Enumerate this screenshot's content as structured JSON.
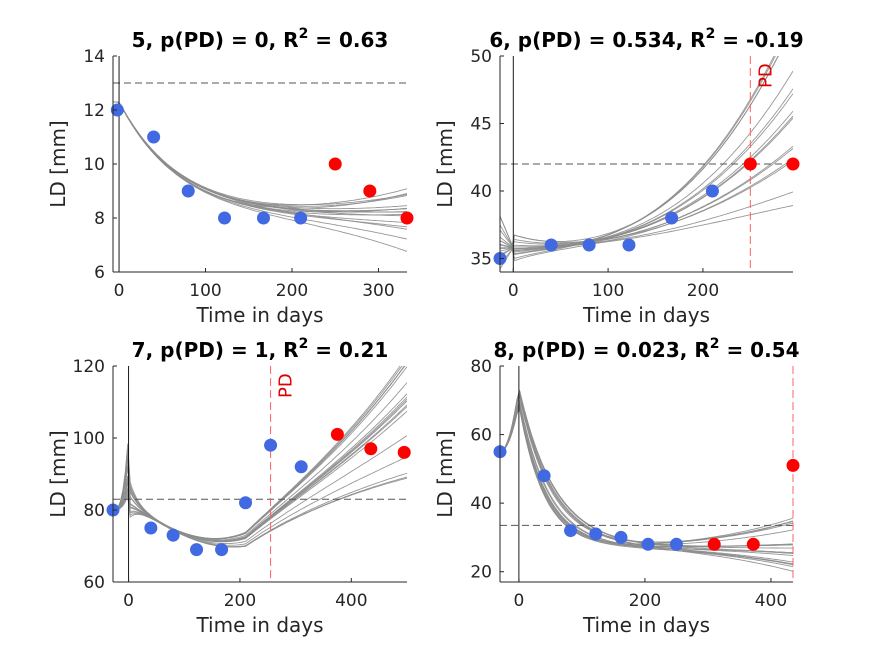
{
  "colors": {
    "observed": "#4169E1",
    "excluded": "#FF0000",
    "fit": "#8c8c8c",
    "threshold": "#555555",
    "pd_line": "#ff6060",
    "axis": "#262626"
  },
  "chart_data": [
    {
      "type": "scatter",
      "title": "5, p(PD) = 0, R",
      "title_sup": "2",
      "title_tail": " = 0.63",
      "xlabel": "Time in days",
      "ylabel": "LD [mm]",
      "xlim": [
        -7,
        333
      ],
      "ylim": [
        6,
        14
      ],
      "xticks": [
        0,
        100,
        200,
        300
      ],
      "yticks": [
        6,
        8,
        10,
        12,
        14
      ],
      "treatment_start_x": 0,
      "threshold_y": 13,
      "observed": {
        "x": [
          -2,
          40,
          80,
          122,
          167,
          210
        ],
        "y": [
          12,
          11,
          9,
          8,
          8,
          8
        ]
      },
      "excluded": {
        "x": [
          250,
          290,
          333
        ],
        "y": [
          10,
          9,
          8
        ]
      },
      "fit": {
        "type": "exp_decay_growth",
        "start": 12.3,
        "fan": [
          -1.4,
          1.6
        ],
        "count": 16,
        "t0": 0,
        "tau": 70
      },
      "pd_line_x": null,
      "pd_label": ""
    },
    {
      "type": "scatter",
      "title": "6, p(PD) = 0.534, R",
      "title_sup": "2",
      "title_tail": " = -0.19",
      "xlabel": "Time in days",
      "ylabel": "LD [mm]",
      "xlim": [
        -14,
        295
      ],
      "ylim": [
        34,
        50
      ],
      "xticks": [
        0,
        100,
        200
      ],
      "yticks": [
        35,
        40,
        45,
        50
      ],
      "treatment_start_x": 0,
      "threshold_y": 42,
      "observed": {
        "x": [
          -14,
          40,
          80,
          122,
          167,
          210
        ],
        "y": [
          35,
          36,
          36,
          36,
          38,
          40
        ]
      },
      "excluded": {
        "x": [
          250,
          295
        ],
        "y": [
          42,
          42
        ]
      },
      "fit": {
        "type": "growth_fan",
        "start": 35.8,
        "fan": [
          -6,
          10
        ],
        "count": 16
      },
      "pd_line_x": 250,
      "pd_label": "PD"
    },
    {
      "type": "scatter",
      "title": "7, p(PD) = 1, R",
      "title_sup": "2",
      "title_tail": " = 0.21",
      "xlabel": "Time in days",
      "ylabel": "LD [mm]",
      "xlim": [
        -28,
        500
      ],
      "ylim": [
        60,
        120
      ],
      "xticks": [
        0,
        200,
        400
      ],
      "yticks": [
        60,
        80,
        100,
        120
      ],
      "treatment_start_x": 0,
      "threshold_y": 83,
      "observed": {
        "x": [
          -28,
          40,
          80,
          122,
          167,
          210,
          255,
          310
        ],
        "y": [
          80,
          75,
          73,
          69,
          69,
          82,
          98,
          92
        ]
      },
      "excluded": {
        "x": [
          375,
          435,
          495
        ],
        "y": [
          101,
          97,
          96
        ]
      },
      "fit": {
        "type": "dip_then_growth",
        "start": 84,
        "fan": [
          -12,
          14
        ],
        "count": 18
      },
      "pd_line_x": 255,
      "pd_label": "PD"
    },
    {
      "type": "scatter",
      "title": "8, p(PD) = 0.023, R",
      "title_sup": "2",
      "title_tail": " = 0.54",
      "xlabel": "Time in days",
      "ylabel": "LD [mm]",
      "xlim": [
        -30,
        435
      ],
      "ylim": [
        17,
        80
      ],
      "xticks": [
        0,
        200,
        400
      ],
      "yticks": [
        20,
        40,
        60,
        80
      ],
      "treatment_start_x": 0,
      "threshold_y": 33.5,
      "observed": {
        "x": [
          -30,
          40,
          82,
          122,
          162,
          205,
          250
        ],
        "y": [
          55,
          48,
          32,
          31,
          30,
          28,
          28
        ]
      },
      "excluded": {
        "x": [
          310,
          372,
          435
        ],
        "y": [
          28,
          28,
          51
        ]
      },
      "fit": {
        "type": "spike_decay",
        "start": 60,
        "peak": 71,
        "fan": [
          -8,
          9
        ],
        "count": 18
      },
      "pd_line_x": 435,
      "pd_label": ""
    }
  ]
}
